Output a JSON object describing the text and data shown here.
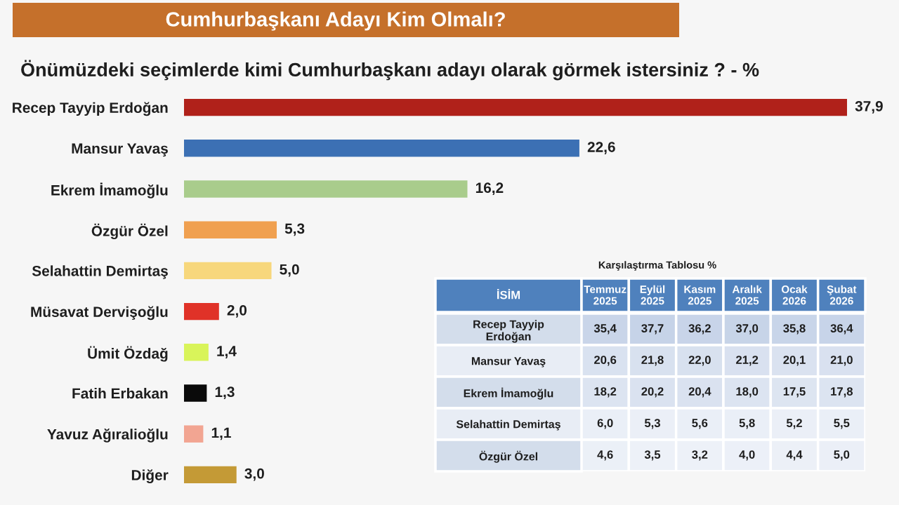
{
  "chart_data": [
    {
      "type": "bar",
      "orientation": "horizontal",
      "title": "Cumhurbaşkanı Adayı Kim Olmalı?",
      "subtitle": "Önümüzdeki seçimlerde kimi Cumhurbaşkanı adayı olarak görmek istersiniz ? - %",
      "categories": [
        "Recep Tayyip Erdoğan",
        "Mansur Yavaş",
        "Ekrem İmamoğlu",
        "Özgür Özel",
        "Selahattin Demirtaş",
        "Müsavat Dervişoğlu",
        "Ümit Özdağ",
        "Fatih Erbakan",
        "Yavuz Ağıralioğlu",
        "Diğer"
      ],
      "values": [
        37.9,
        22.6,
        16.2,
        5.3,
        5.0,
        2.0,
        1.4,
        1.3,
        1.1,
        3.0
      ],
      "colors": [
        "#b0211a",
        "#3c70b4",
        "#a9cc8c",
        "#f0a050",
        "#f7d77c",
        "#e03228",
        "#d9f45a",
        "#0a0a0a",
        "#f2a592",
        "#c49a36"
      ],
      "value_labels": [
        "37,9",
        "22,6",
        "16,2",
        "5,3",
        "5,0",
        "2,0",
        "1,4",
        "1,3",
        "1,1",
        "3,0"
      ],
      "tick_labels": "y"
    },
    {
      "type": "heatmap",
      "title": "Karşılaştırma Tablosu %",
      "ylabel": "İSİM",
      "categories": [
        "Temmuz\n2025",
        "Eylül\n2025",
        "Kasım\n2025",
        "Aralık\n2025",
        "Ocak\n2026",
        "Şubat\n2026"
      ],
      "y_categories": [
        "Recep Tayyip\nErdoğan",
        "Mansur Yavaş",
        "Ekrem İmamoğlu",
        "Selahattin Demirtaş",
        "Özgür Özel"
      ],
      "cells": [
        [
          35.4,
          37.7,
          36.2,
          37.0,
          35.8,
          36.4
        ],
        [
          20.6,
          21.8,
          22.0,
          21.2,
          20.1,
          21.0
        ],
        [
          18.2,
          20.2,
          20.4,
          18.0,
          17.5,
          17.8
        ],
        [
          6.0,
          5.3,
          5.6,
          5.8,
          5.2,
          5.5
        ],
        [
          4.6,
          3.5,
          3.2,
          4.0,
          4.4,
          5.0
        ]
      ],
      "cell_labels": [
        [
          "35,4",
          "37,7",
          "36,2",
          "37,0",
          "35,8",
          "36,4"
        ],
        [
          "20,6",
          "21,8",
          "22,0",
          "21,2",
          "20,1",
          "21,0"
        ],
        [
          "18,2",
          "20,2",
          "20,4",
          "18,0",
          "17,5",
          "17,8"
        ],
        [
          "6,0",
          "5,3",
          "5,6",
          "5,8",
          "5,2",
          "5,5"
        ],
        [
          "4,6",
          "3,5",
          "3,2",
          "4,0",
          "4,4",
          "5,0"
        ]
      ]
    }
  ]
}
